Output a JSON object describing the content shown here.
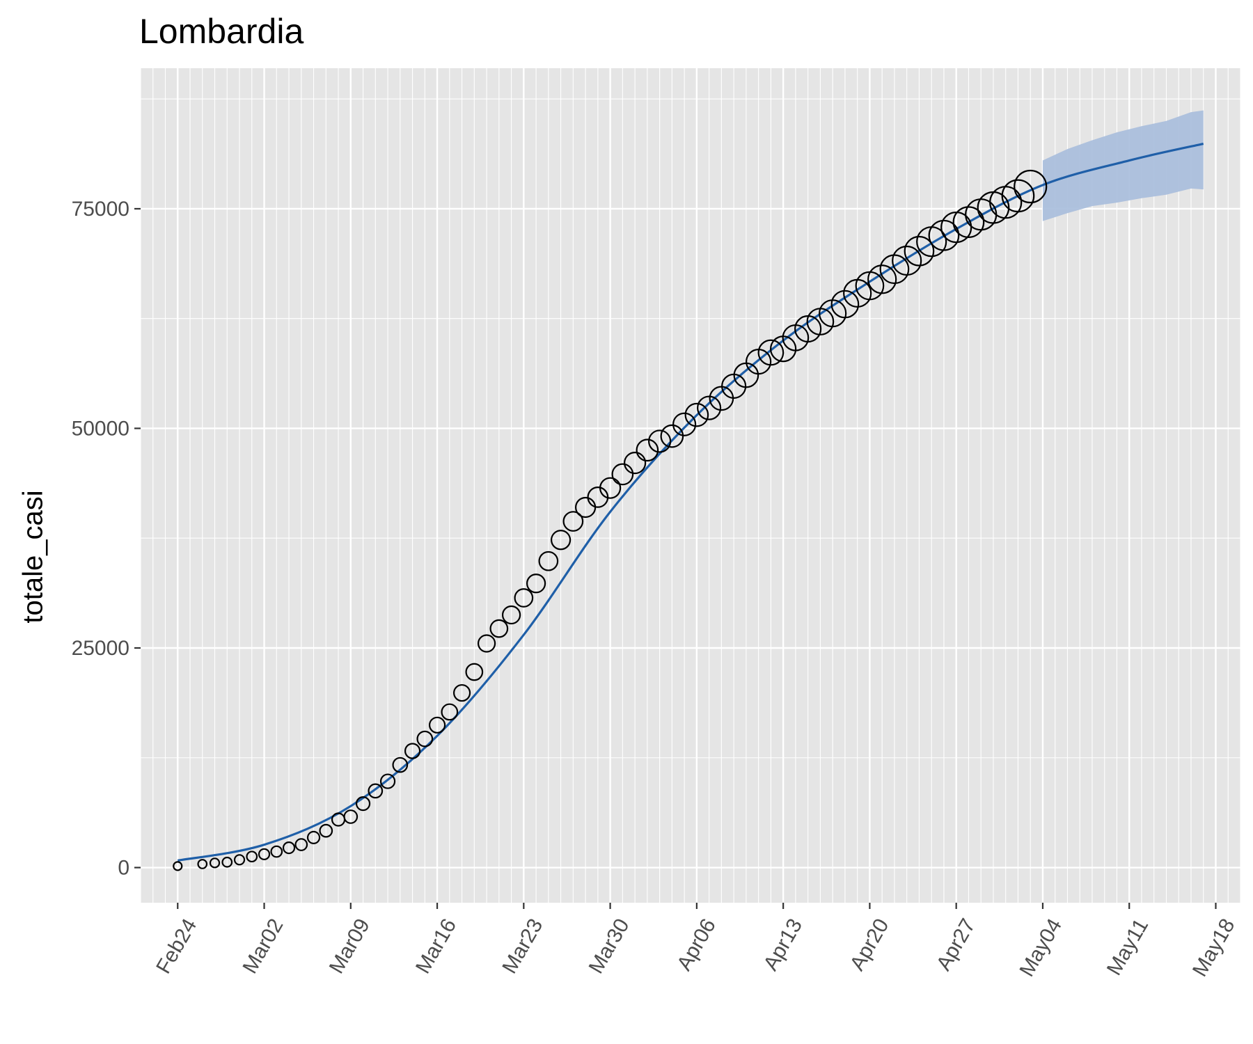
{
  "chart_data": {
    "type": "scatter",
    "title": "Lombardia",
    "xlabel": "",
    "ylabel": "totale_casi",
    "x_axis": {
      "type": "date",
      "range": [
        "2020-02-21",
        "2020-05-20"
      ],
      "tick_labels": [
        "Feb24",
        "Mar02",
        "Mar09",
        "Mar16",
        "Mar23",
        "Mar30",
        "Apr06",
        "Apr13",
        "Apr20",
        "Apr27",
        "May04",
        "May11",
        "May18"
      ],
      "tick_dates": [
        "2020-02-24",
        "2020-03-02",
        "2020-03-09",
        "2020-03-16",
        "2020-03-23",
        "2020-03-30",
        "2020-04-06",
        "2020-04-13",
        "2020-04-20",
        "2020-04-27",
        "2020-05-04",
        "2020-05-11",
        "2020-05-18"
      ],
      "tick_label_angle": 60,
      "minor_grid": "daily"
    },
    "y_axis": {
      "ylim": [
        -4000,
        91000
      ],
      "ticks": [
        0,
        25000,
        50000,
        75000
      ],
      "tick_labels": [
        "0",
        "25000",
        "50000",
        "75000"
      ],
      "minor_grid": [
        12500,
        37500,
        62500,
        87500
      ]
    },
    "grid": true,
    "legend": "none",
    "colors": {
      "panel": "#e5e5e5",
      "grid": "#ffffff",
      "points": "#000000",
      "fit_line": "#1f5fa8",
      "ribbon": "#a7bddb"
    },
    "series": [
      {
        "kind": "points",
        "marker": "open circle, size increasing over time",
        "x": [
          "2020-02-24",
          "2020-02-26",
          "2020-02-27",
          "2020-02-28",
          "2020-02-29",
          "2020-03-01",
          "2020-03-02",
          "2020-03-03",
          "2020-03-04",
          "2020-03-05",
          "2020-03-06",
          "2020-03-07",
          "2020-03-08",
          "2020-03-09",
          "2020-03-10",
          "2020-03-11",
          "2020-03-12",
          "2020-03-13",
          "2020-03-14",
          "2020-03-15",
          "2020-03-16",
          "2020-03-17",
          "2020-03-18",
          "2020-03-19",
          "2020-03-20",
          "2020-03-21",
          "2020-03-22",
          "2020-03-23",
          "2020-03-24",
          "2020-03-25",
          "2020-03-26",
          "2020-03-27",
          "2020-03-28",
          "2020-03-29",
          "2020-03-30",
          "2020-03-31",
          "2020-04-01",
          "2020-04-02",
          "2020-04-03",
          "2020-04-04",
          "2020-04-05",
          "2020-04-06",
          "2020-04-07",
          "2020-04-08",
          "2020-04-09",
          "2020-04-10",
          "2020-04-11",
          "2020-04-12",
          "2020-04-13",
          "2020-04-14",
          "2020-04-15",
          "2020-04-16",
          "2020-04-17",
          "2020-04-18",
          "2020-04-19",
          "2020-04-20",
          "2020-04-21",
          "2020-04-22",
          "2020-04-23",
          "2020-04-24",
          "2020-04-25",
          "2020-04-26",
          "2020-04-27",
          "2020-04-28",
          "2020-04-29",
          "2020-04-30",
          "2020-05-01",
          "2020-05-02",
          "2020-05-03"
        ],
        "y": [
          172,
          403,
          531,
          615,
          888,
          1254,
          1520,
          1820,
          2251,
          2612,
          3420,
          4189,
          5469,
          5791,
          7280,
          8725,
          9820,
          11685,
          13272,
          14649,
          16220,
          17713,
          19884,
          22264,
          25515,
          27206,
          28761,
          30703,
          32346,
          34889,
          37298,
          39415,
          41007,
          42161,
          43208,
          44773,
          46065,
          47520,
          48535,
          49118,
          50455,
          51534,
          52325,
          53414,
          54802,
          56048,
          57592,
          58633,
          59052,
          60314,
          61326,
          62153,
          63094,
          64135,
          65381,
          66236,
          66971,
          68119,
          69092,
          70180,
          71256,
          71969,
          72889,
          73479,
          74346,
          75134,
          75732,
          76469,
          77528
        ]
      },
      {
        "kind": "fit_line",
        "x": [
          "2020-02-24",
          "2020-03-02",
          "2020-03-09",
          "2020-03-16",
          "2020-03-23",
          "2020-03-30",
          "2020-04-06",
          "2020-04-13",
          "2020-04-20",
          "2020-04-27",
          "2020-05-04",
          "2020-05-11",
          "2020-05-17"
        ],
        "y": [
          800,
          2600,
          7000,
          15000,
          26500,
          40500,
          51500,
          60000,
          66700,
          72700,
          77700,
          80500,
          82400
        ]
      },
      {
        "kind": "confidence_band",
        "x": [
          "2020-05-04",
          "2020-05-06",
          "2020-05-08",
          "2020-05-10",
          "2020-05-12",
          "2020-05-14",
          "2020-05-16",
          "2020-05-17"
        ],
        "lower": [
          73600,
          74500,
          75300,
          75700,
          76200,
          76600,
          77300,
          77200
        ],
        "upper": [
          80500,
          81800,
          82800,
          83700,
          84400,
          85000,
          86000,
          86200
        ]
      }
    ]
  }
}
